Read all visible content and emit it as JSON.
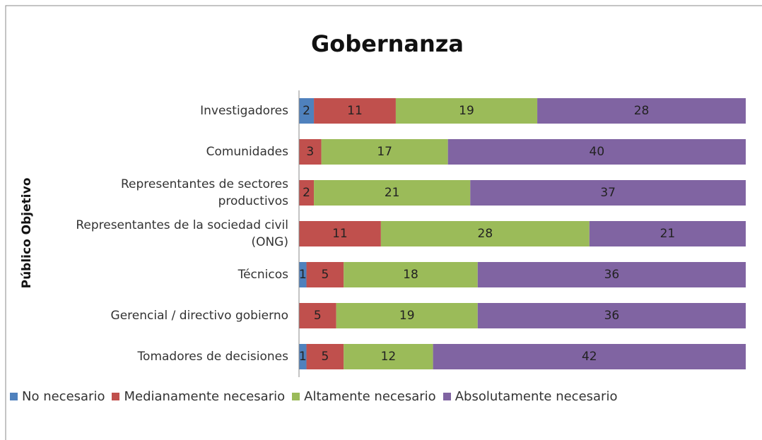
{
  "chart_data": {
    "type": "stacked_bar_horizontal",
    "title": "Gobernanza",
    "y_axis_label": "Público Objetivo",
    "categories": [
      "Investigadores",
      "Comunidades",
      "Representantes de sectores\nproductivos",
      "Representantes de la sociedad civil\n(ONG)",
      "Técnicos",
      "Gerencial / directivo gobierno",
      "Tomadores de decisiones"
    ],
    "series": [
      {
        "name": "No necesario",
        "color": "#4f81bd",
        "values": [
          2,
          null,
          null,
          null,
          1,
          null,
          1
        ]
      },
      {
        "name": "Medianamente necesario",
        "color": "#c0504d",
        "values": [
          11,
          3,
          2,
          11,
          5,
          5,
          5
        ]
      },
      {
        "name": "Altamente necesario",
        "color": "#9bbb59",
        "values": [
          19,
          17,
          21,
          28,
          18,
          19,
          12
        ]
      },
      {
        "name": "Absolutamente necesario",
        "color": "#8064a2",
        "values": [
          28,
          40,
          37,
          21,
          36,
          36,
          42
        ]
      }
    ],
    "legend": "bottom"
  }
}
